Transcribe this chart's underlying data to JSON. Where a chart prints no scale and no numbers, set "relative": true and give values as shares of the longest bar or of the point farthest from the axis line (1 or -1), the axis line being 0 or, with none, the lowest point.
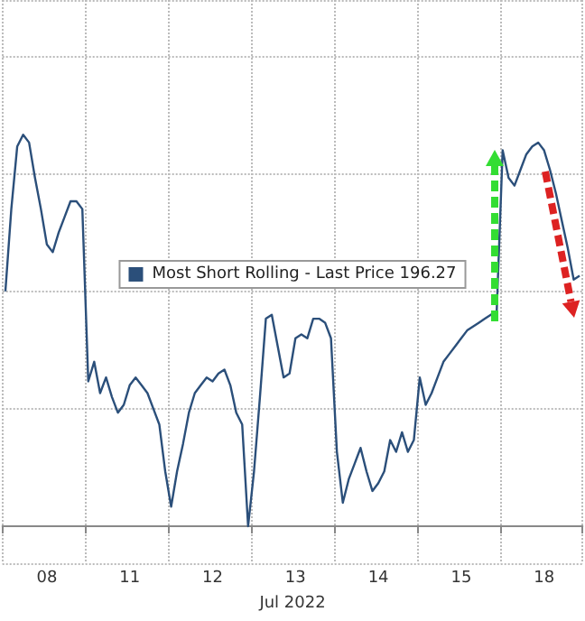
{
  "chart_data": {
    "type": "line",
    "relative": true,
    "xlabel": "Jul 2022",
    "grid": true,
    "legend": "center",
    "line_style": "solid",
    "marker": "none",
    "categories": [
      null,
      null,
      null,
      null,
      null,
      null,
      null,
      "08",
      null,
      null,
      null,
      null,
      null,
      null,
      null,
      null,
      null,
      null,
      null,
      null,
      null,
      "11",
      null,
      null,
      null,
      null,
      null,
      null,
      null,
      null,
      null,
      null,
      null,
      null,
      null,
      "12",
      null,
      null,
      null,
      null,
      null,
      null,
      null,
      null,
      null,
      null,
      null,
      null,
      null,
      "13",
      null,
      null,
      null,
      null,
      null,
      null,
      null,
      null,
      null,
      null,
      null,
      null,
      null,
      "14",
      null,
      null,
      null,
      null,
      null,
      null,
      null,
      null,
      null,
      null,
      null,
      null,
      null,
      "15",
      null,
      null,
      null,
      null,
      null,
      null,
      null,
      null,
      null,
      null,
      null,
      null,
      null,
      "18",
      null,
      null,
      null,
      null,
      null,
      null
    ],
    "series": [
      {
        "name": "Most Short Rolling - Last Price 196.27",
        "color": "#2b4f7a",
        "values": [
          0.6,
          0.81,
          0.97,
          1.0,
          0.98,
          0.89,
          0.81,
          0.72,
          0.7,
          0.75,
          0.79,
          0.83,
          0.83,
          0.81,
          0.37,
          0.42,
          0.34,
          0.38,
          0.33,
          0.29,
          0.31,
          0.36,
          0.38,
          0.36,
          0.34,
          0.3,
          0.26,
          0.14,
          0.05,
          0.14,
          0.21,
          0.29,
          0.34,
          0.36,
          0.38,
          0.37,
          0.39,
          0.4,
          0.36,
          0.29,
          0.26,
          0,
          0.14,
          0.33,
          0.53,
          0.54,
          0.46,
          0.38,
          0.39,
          0.48,
          0.49,
          0.48,
          0.53,
          0.53,
          0.52,
          0.48,
          0.19,
          0.06,
          0.12,
          0.16,
          0.2,
          0.14,
          0.09,
          0.11,
          0.14,
          0.22,
          0.19,
          0.24,
          0.19,
          0.22,
          0.38,
          0.31,
          0.34,
          0.38,
          0.42,
          0.44,
          0.46,
          0.48,
          0.5,
          0.51,
          0.52,
          0.53,
          0.54,
          0.55,
          0.96,
          0.89,
          0.87,
          0.91,
          0.95,
          0.97,
          0.98,
          0.96,
          0.91,
          0.85,
          0.78,
          0.71,
          0.63,
          0.64
        ]
      }
    ]
  }
}
